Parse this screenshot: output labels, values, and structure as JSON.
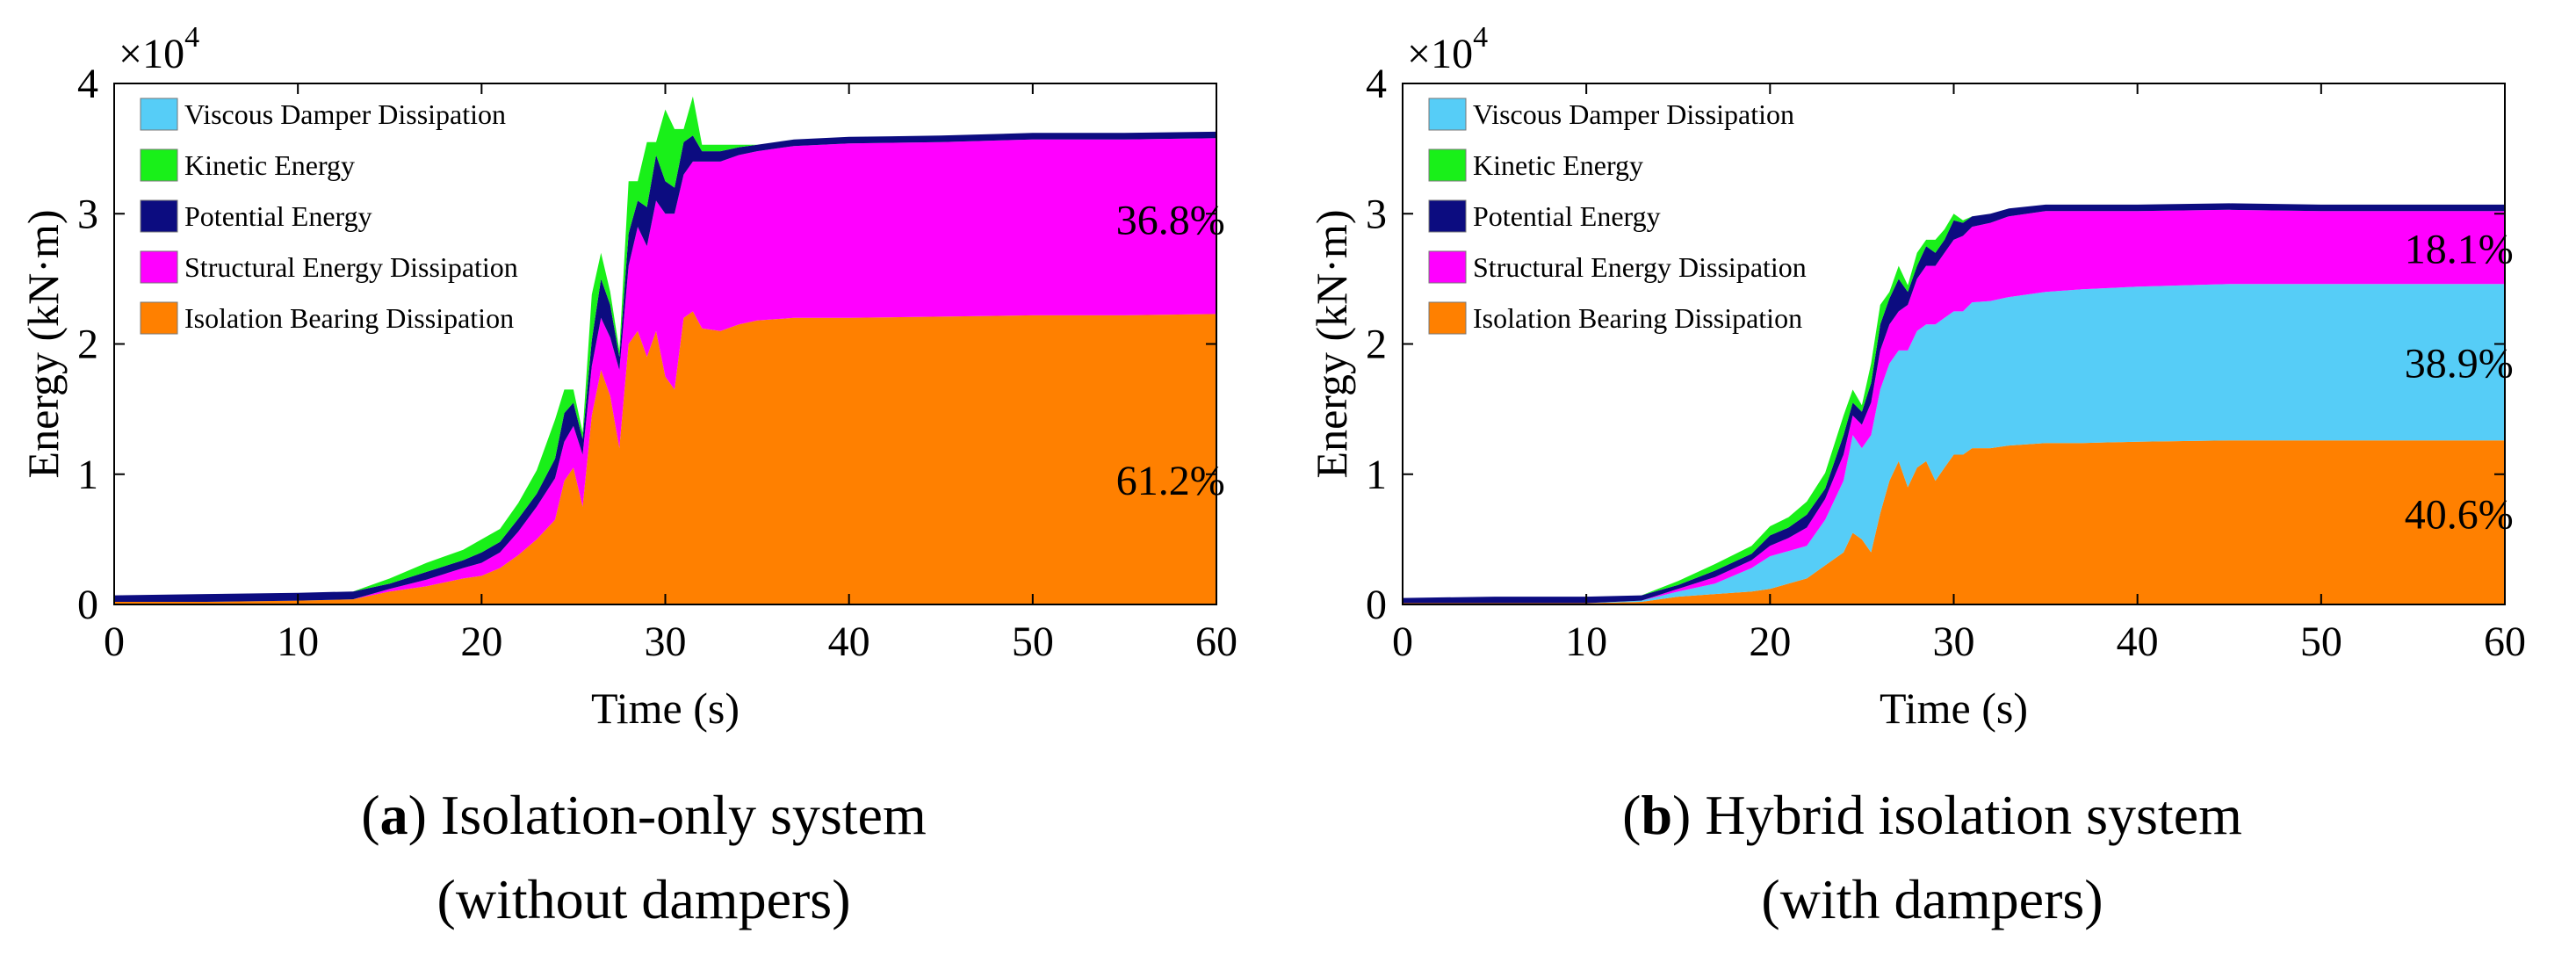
{
  "colors": {
    "Viscous Damper Dissipation": "#56cdf7",
    "Kinetic Energy": "#19f019",
    "Potential Energy": "#0c0c80",
    "Structural Energy Dissipation": "#ff00ff",
    "Isolation Bearing Dissipation": "#ff8000"
  },
  "chart_data": [
    {
      "type": "area",
      "panel": "a",
      "ylabel": "Energy (kN·m)",
      "xlabel": "Time (s)",
      "exponent_label": "×10",
      "exponent_power": "4",
      "xlim": [
        0,
        60
      ],
      "ylim": [
        0,
        4
      ],
      "y_scale_factor": 10000,
      "xticks": [
        0,
        10,
        20,
        30,
        40,
        50,
        60
      ],
      "yticks": [
        0,
        1,
        2,
        3,
        4
      ],
      "grid": false,
      "stacked": true,
      "legend_position": "top-left",
      "legend": [
        "Viscous Damper Dissipation",
        "Kinetic Energy",
        "Potential Energy",
        "Structural Energy Dissipation",
        "Isolation Bearing Dissipation"
      ],
      "x": [
        0,
        5,
        10,
        13,
        15,
        17,
        19,
        20,
        21,
        22,
        23,
        24,
        24.5,
        25,
        25.5,
        26,
        26.5,
        27,
        27.5,
        28,
        28.5,
        29,
        29.5,
        30,
        30.5,
        31,
        31.5,
        32,
        33,
        34,
        35,
        37,
        40,
        45,
        50,
        55,
        60
      ],
      "series": [
        {
          "name": "Isolation Bearing Dissipation",
          "values": [
            0.02,
            0.02,
            0.03,
            0.04,
            0.1,
            0.14,
            0.2,
            0.22,
            0.28,
            0.38,
            0.5,
            0.65,
            0.95,
            1.05,
            0.75,
            1.45,
            1.8,
            1.6,
            1.2,
            2.0,
            2.1,
            1.9,
            2.1,
            1.75,
            1.65,
            2.2,
            2.25,
            2.12,
            2.1,
            2.15,
            2.18,
            2.2,
            2.2,
            2.21,
            2.22,
            2.22,
            2.23
          ]
        },
        {
          "name": "Structural Energy Dissipation",
          "values": [
            0.0,
            0.0,
            0.0,
            0.0,
            0.02,
            0.05,
            0.08,
            0.1,
            0.12,
            0.18,
            0.25,
            0.32,
            0.3,
            0.32,
            0.4,
            0.38,
            0.4,
            0.45,
            0.6,
            0.6,
            0.8,
            0.85,
            1.0,
            1.25,
            1.35,
            1.1,
            1.15,
            1.28,
            1.3,
            1.3,
            1.3,
            1.32,
            1.34,
            1.34,
            1.35,
            1.35,
            1.35
          ]
        },
        {
          "name": "Potential Energy",
          "values": [
            0.05,
            0.06,
            0.06,
            0.06,
            0.04,
            0.06,
            0.06,
            0.08,
            0.08,
            0.1,
            0.1,
            0.15,
            0.22,
            0.18,
            0.12,
            0.2,
            0.3,
            0.25,
            0.1,
            0.25,
            0.2,
            0.3,
            0.35,
            0.25,
            0.2,
            0.25,
            0.2,
            0.08,
            0.08,
            0.06,
            0.05,
            0.05,
            0.05,
            0.05,
            0.05,
            0.05,
            0.05
          ]
        },
        {
          "name": "Kinetic Energy",
          "values": [
            0.0,
            0.0,
            0.0,
            0.0,
            0.04,
            0.07,
            0.08,
            0.1,
            0.1,
            0.12,
            0.18,
            0.3,
            0.18,
            0.1,
            0.05,
            0.35,
            0.2,
            0.1,
            0.05,
            0.4,
            0.15,
            0.5,
            0.1,
            0.55,
            0.45,
            0.1,
            0.3,
            0.05,
            0.05,
            0.02,
            0.0,
            0.0,
            0.0,
            0.0,
            0.0,
            0.0,
            0.0
          ]
        },
        {
          "name": "Viscous Damper Dissipation",
          "values": [
            0,
            0,
            0,
            0,
            0,
            0,
            0,
            0,
            0,
            0,
            0,
            0,
            0,
            0,
            0,
            0,
            0,
            0,
            0,
            0,
            0,
            0,
            0,
            0,
            0,
            0,
            0,
            0,
            0,
            0,
            0,
            0,
            0,
            0,
            0,
            0,
            0
          ]
        }
      ],
      "annotations": [
        {
          "text": "36.8%",
          "x": 57.5,
          "y": 2.95
        },
        {
          "text": "61.2%",
          "x": 57.5,
          "y": 0.95
        }
      ],
      "caption_letter": "a",
      "caption_line1": ") Isolation-only system",
      "caption_line2": "(without dampers)"
    },
    {
      "type": "area",
      "panel": "b",
      "ylabel": "Energy (kN·m)",
      "xlabel": "Time (s)",
      "exponent_label": "×10",
      "exponent_power": "4",
      "xlim": [
        0,
        60
      ],
      "ylim": [
        0,
        4
      ],
      "y_scale_factor": 10000,
      "xticks": [
        0,
        10,
        20,
        30,
        40,
        50,
        60
      ],
      "yticks": [
        0,
        1,
        2,
        3,
        4
      ],
      "grid": false,
      "stacked": true,
      "legend_position": "top-left",
      "legend": [
        "Viscous Damper Dissipation",
        "Kinetic Energy",
        "Potential Energy",
        "Structural Energy Dissipation",
        "Isolation Bearing Dissipation"
      ],
      "x": [
        0,
        5,
        10,
        13,
        15,
        17,
        19,
        20,
        21,
        22,
        23,
        24,
        24.5,
        25,
        25.5,
        26,
        26.5,
        27,
        27.5,
        28,
        28.5,
        29,
        29.5,
        30,
        30.5,
        31,
        32,
        33,
        35,
        37,
        40,
        45,
        50,
        55,
        60
      ],
      "series": [
        {
          "name": "Isolation Bearing Dissipation",
          "values": [
            0.01,
            0.01,
            0.01,
            0.02,
            0.06,
            0.08,
            0.1,
            0.12,
            0.16,
            0.2,
            0.3,
            0.4,
            0.55,
            0.5,
            0.4,
            0.7,
            0.95,
            1.1,
            0.9,
            1.05,
            1.1,
            0.95,
            1.05,
            1.15,
            1.15,
            1.2,
            1.2,
            1.22,
            1.24,
            1.24,
            1.25,
            1.26,
            1.26,
            1.26,
            1.26
          ]
        },
        {
          "name": "Viscous Damper Dissipation",
          "values": [
            0.0,
            0.0,
            0.0,
            0.01,
            0.04,
            0.08,
            0.18,
            0.25,
            0.25,
            0.25,
            0.35,
            0.55,
            0.75,
            0.7,
            0.9,
            0.95,
            0.9,
            0.85,
            1.05,
            1.05,
            1.05,
            1.2,
            1.15,
            1.1,
            1.1,
            1.12,
            1.13,
            1.14,
            1.16,
            1.18,
            1.19,
            1.2,
            1.2,
            1.2,
            1.2
          ]
        },
        {
          "name": "Structural Energy Dissipation",
          "values": [
            0.0,
            0.0,
            0.0,
            0.0,
            0.02,
            0.05,
            0.06,
            0.08,
            0.1,
            0.14,
            0.16,
            0.2,
            0.15,
            0.18,
            0.25,
            0.3,
            0.3,
            0.3,
            0.35,
            0.4,
            0.45,
            0.45,
            0.5,
            0.55,
            0.58,
            0.58,
            0.6,
            0.62,
            0.62,
            0.6,
            0.58,
            0.57,
            0.56,
            0.56,
            0.56
          ]
        },
        {
          "name": "Potential Energy",
          "values": [
            0.04,
            0.05,
            0.05,
            0.04,
            0.03,
            0.05,
            0.05,
            0.08,
            0.08,
            0.1,
            0.08,
            0.15,
            0.1,
            0.1,
            0.15,
            0.2,
            0.2,
            0.25,
            0.1,
            0.1,
            0.15,
            0.1,
            0.1,
            0.15,
            0.1,
            0.08,
            0.07,
            0.06,
            0.05,
            0.05,
            0.05,
            0.05,
            0.05,
            0.05,
            0.05
          ]
        },
        {
          "name": "Kinetic Energy",
          "values": [
            0.0,
            0.0,
            0.0,
            0.0,
            0.03,
            0.05,
            0.06,
            0.07,
            0.08,
            0.1,
            0.12,
            0.15,
            0.1,
            0.05,
            0.15,
            0.15,
            0.05,
            0.1,
            0.05,
            0.1,
            0.05,
            0.1,
            0.08,
            0.05,
            0.02,
            0.0,
            0.0,
            0.0,
            0.0,
            0.0,
            0.0,
            0.0,
            0.0,
            0.0,
            0.0
          ]
        }
      ],
      "annotations": [
        {
          "text": "18.1%",
          "x": 57.5,
          "y": 2.73
        },
        {
          "text": "38.9%",
          "x": 57.5,
          "y": 1.85
        },
        {
          "text": "40.6%",
          "x": 57.5,
          "y": 0.69
        }
      ],
      "caption_letter": "b",
      "caption_line1": ") Hybrid isolation system",
      "caption_line2": "(with dampers)"
    }
  ]
}
